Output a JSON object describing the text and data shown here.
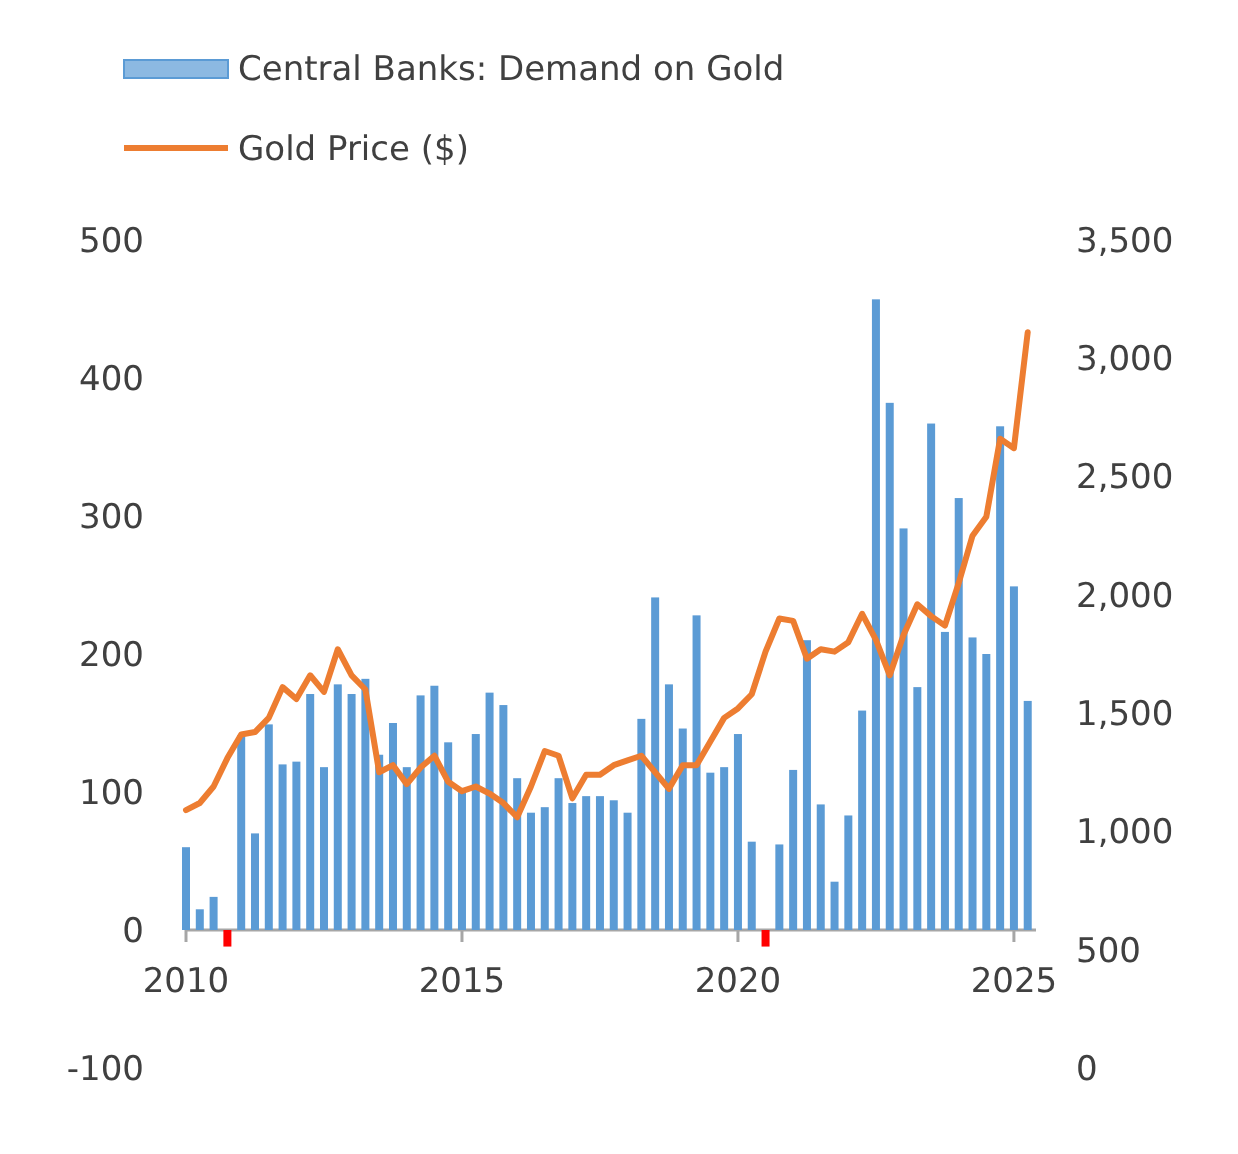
{
  "chart_data": {
    "type": "bar",
    "x": [
      2010,
      2010.25,
      2010.5,
      2010.75,
      2011,
      2011.25,
      2011.5,
      2011.75,
      2012,
      2012.25,
      2012.5,
      2012.75,
      2013,
      2013.25,
      2013.5,
      2013.75,
      2014,
      2014.25,
      2014.5,
      2014.75,
      2015,
      2015.25,
      2015.5,
      2015.75,
      2016,
      2016.25,
      2016.5,
      2016.75,
      2017,
      2017.25,
      2017.5,
      2017.75,
      2018,
      2018.25,
      2018.5,
      2018.75,
      2019,
      2019.25,
      2019.5,
      2019.75,
      2020,
      2020.25,
      2020.5,
      2020.75,
      2021,
      2021.25,
      2021.5,
      2021.75,
      2022,
      2022.25,
      2022.5,
      2022.75,
      2023,
      2023.25,
      2023.5,
      2023.75,
      2024,
      2024.25,
      2024.5,
      2024.75,
      2025,
      2025.25
    ],
    "series": [
      {
        "name": "Central Banks: Demand on Gold",
        "color": "#5b9bd5",
        "colors": [
          "#5b9bd5",
          "#5b9bd5",
          "#5b9bd5",
          "#ff0000",
          "#5b9bd5",
          "#5b9bd5",
          "#5b9bd5",
          "#5b9bd5",
          "#5b9bd5",
          "#5b9bd5",
          "#5b9bd5",
          "#5b9bd5",
          "#5b9bd5",
          "#5b9bd5",
          "#5b9bd5",
          "#5b9bd5",
          "#5b9bd5",
          "#5b9bd5",
          "#5b9bd5",
          "#5b9bd5",
          "#5b9bd5",
          "#5b9bd5",
          "#5b9bd5",
          "#5b9bd5",
          "#5b9bd5",
          "#5b9bd5",
          "#5b9bd5",
          "#5b9bd5",
          "#5b9bd5",
          "#5b9bd5",
          "#5b9bd5",
          "#5b9bd5",
          "#5b9bd5",
          "#5b9bd5",
          "#5b9bd5",
          "#5b9bd5",
          "#5b9bd5",
          "#5b9bd5",
          "#5b9bd5",
          "#5b9bd5",
          "#5b9bd5",
          "#5b9bd5",
          "#ff0000",
          "#5b9bd5",
          "#5b9bd5",
          "#5b9bd5",
          "#5b9bd5",
          "#5b9bd5",
          "#5b9bd5",
          "#5b9bd5",
          "#5b9bd5",
          "#5b9bd5",
          "#5b9bd5",
          "#5b9bd5",
          "#5b9bd5",
          "#5b9bd5",
          "#5b9bd5",
          "#5b9bd5",
          "#5b9bd5",
          "#5b9bd5",
          "#5b9bd5",
          "#5b9bd5"
        ],
        "values": [
          60,
          15,
          24,
          -12,
          141,
          70,
          149,
          120,
          122,
          171,
          118,
          178,
          171,
          182,
          127,
          150,
          118,
          170,
          177,
          136,
          101,
          142,
          172,
          163,
          110,
          85,
          89,
          110,
          92,
          97,
          97,
          94,
          85,
          153,
          241,
          178,
          146,
          228,
          114,
          118,
          142,
          64,
          -12,
          62,
          116,
          210,
          91,
          35,
          83,
          159,
          457,
          382,
          291,
          176,
          367,
          216,
          313,
          212,
          200,
          365,
          249,
          166
        ]
      },
      {
        "name": "Gold Price ($)",
        "type": "line",
        "axis": "y2",
        "color": "#ed7d31",
        "values": [
          1090,
          1120,
          1190,
          1310,
          1410,
          1420,
          1480,
          1610,
          1560,
          1660,
          1590,
          1770,
          1660,
          1600,
          1250,
          1280,
          1200,
          1270,
          1320,
          1210,
          1170,
          1190,
          1160,
          1120,
          1060,
          1190,
          1340,
          1320,
          1140,
          1240,
          1240,
          1280,
          1300,
          1320,
          1250,
          1180,
          1280,
          1280,
          1380,
          1480,
          1520,
          1580,
          1760,
          1900,
          1890,
          1730,
          1770,
          1760,
          1800,
          1920,
          1810,
          1660,
          1830,
          1960,
          1910,
          1870,
          2050,
          2250,
          2330,
          2660,
          2620,
          3110
        ]
      }
    ],
    "xlim": [
      2010,
      2025.4
    ],
    "xticks": [
      2010,
      2015,
      2020,
      2025
    ],
    "ylim": [
      -100,
      500
    ],
    "yticks": [
      -100,
      0,
      100,
      200,
      300,
      400,
      500
    ],
    "y2lim": [
      0,
      3500
    ],
    "y2ticks": [
      0,
      500,
      {
        "value": 1000,
        "label": "1,000"
      },
      {
        "value": 1500,
        "label": "1,500"
      },
      {
        "value": 2000,
        "label": "2,000"
      },
      {
        "value": 2500,
        "label": "2,500"
      },
      {
        "value": 3000,
        "label": "3,000"
      },
      {
        "value": 3500,
        "label": "3,500"
      }
    ],
    "grid": false,
    "legend": "top left"
  }
}
